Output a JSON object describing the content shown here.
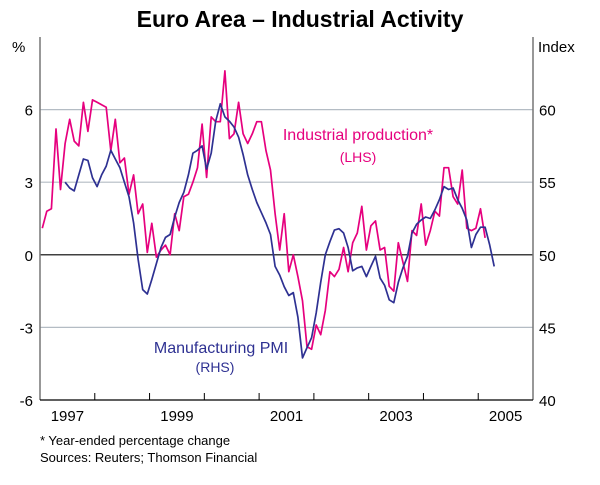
{
  "chart_data": {
    "type": "line",
    "title": "Euro Area – Industrial Activity",
    "left_axis": {
      "unit_label": "%",
      "ylim": [
        -6,
        9
      ],
      "ticks": [
        -6,
        -3,
        0,
        3,
        6
      ]
    },
    "right_axis": {
      "unit_label": "Index",
      "ylim": [
        40,
        65
      ],
      "ticks": [
        40,
        45,
        50,
        55,
        60
      ]
    },
    "xlim": [
      1997,
      2006
    ],
    "x_tick_labels": [
      "1997",
      "1999",
      "2001",
      "2003",
      "2005"
    ],
    "grid": true,
    "series": [
      {
        "name": "Industrial production*",
        "axis_note": "(LHS)",
        "axis": "left",
        "color": "#E6007E",
        "frequency": "monthly",
        "start": "1997-01",
        "values": [
          1.1,
          1.8,
          1.9,
          5.2,
          2.7,
          4.6,
          5.6,
          4.7,
          4.5,
          6.3,
          5.1,
          6.4,
          6.3,
          6.2,
          6.1,
          4.3,
          5.6,
          3.8,
          4.0,
          2.5,
          3.3,
          1.7,
          2.1,
          0.1,
          1.3,
          -0.1,
          0.2,
          0.4,
          0.0,
          1.7,
          1.0,
          2.4,
          2.5,
          3.0,
          3.6,
          5.4,
          3.2,
          5.7,
          5.5,
          5.5,
          7.6,
          4.8,
          5.0,
          6.3,
          5.0,
          4.6,
          5.0,
          5.5,
          5.5,
          4.3,
          3.5,
          1.7,
          0.2,
          1.7,
          -0.7,
          0.0,
          -0.9,
          -1.9,
          -3.8,
          -3.9,
          -2.9,
          -3.3,
          -2.3,
          -0.7,
          -0.9,
          -0.6,
          0.3,
          -0.7,
          0.5,
          0.9,
          2.0,
          0.2,
          1.2,
          1.4,
          0.2,
          0.3,
          -1.3,
          -1.5,
          0.5,
          -0.3,
          -1.1,
          1.0,
          0.8,
          2.1,
          0.4,
          1.0,
          1.8,
          1.6,
          3.6,
          3.6,
          2.4,
          2.1,
          3.5,
          1.1,
          1.0,
          1.1,
          1.9,
          0.7
        ]
      },
      {
        "name": "Manufacturing PMI",
        "axis_note": "(RHS)",
        "axis": "right",
        "color": "#2E3192",
        "frequency": "monthly",
        "start": "1997-06",
        "values": [
          55.0,
          54.6,
          54.4,
          55.5,
          56.6,
          56.5,
          55.3,
          54.7,
          55.5,
          56.1,
          57.2,
          56.6,
          56.0,
          55.0,
          54.0,
          52.2,
          49.7,
          47.6,
          47.3,
          48.3,
          49.4,
          50.5,
          51.2,
          51.4,
          52.6,
          53.6,
          54.3,
          55.5,
          57.0,
          57.2,
          57.5,
          55.9,
          57.0,
          59.2,
          60.4,
          59.5,
          59.2,
          58.8,
          58.1,
          56.9,
          55.5,
          54.5,
          53.6,
          52.9,
          52.2,
          51.4,
          49.2,
          48.6,
          47.8,
          47.2,
          47.4,
          45.7,
          42.9,
          43.6,
          44.3,
          46.0,
          48.1,
          50.0,
          50.9,
          51.7,
          51.8,
          51.5,
          50.5,
          48.9,
          49.1,
          49.2,
          48.5,
          49.2,
          49.9,
          48.4,
          47.9,
          46.9,
          46.7,
          48.1,
          49.1,
          49.9,
          51.5,
          52.1,
          52.4,
          52.6,
          52.5,
          53.1,
          53.8,
          54.7,
          54.5,
          54.6,
          53.8,
          53.2,
          52.4,
          50.5,
          51.4,
          51.9,
          51.9,
          50.7,
          49.2
        ]
      }
    ],
    "footnote": "* Year-ended percentage change",
    "sources": "Sources: Reuters; Thomson Financial"
  }
}
